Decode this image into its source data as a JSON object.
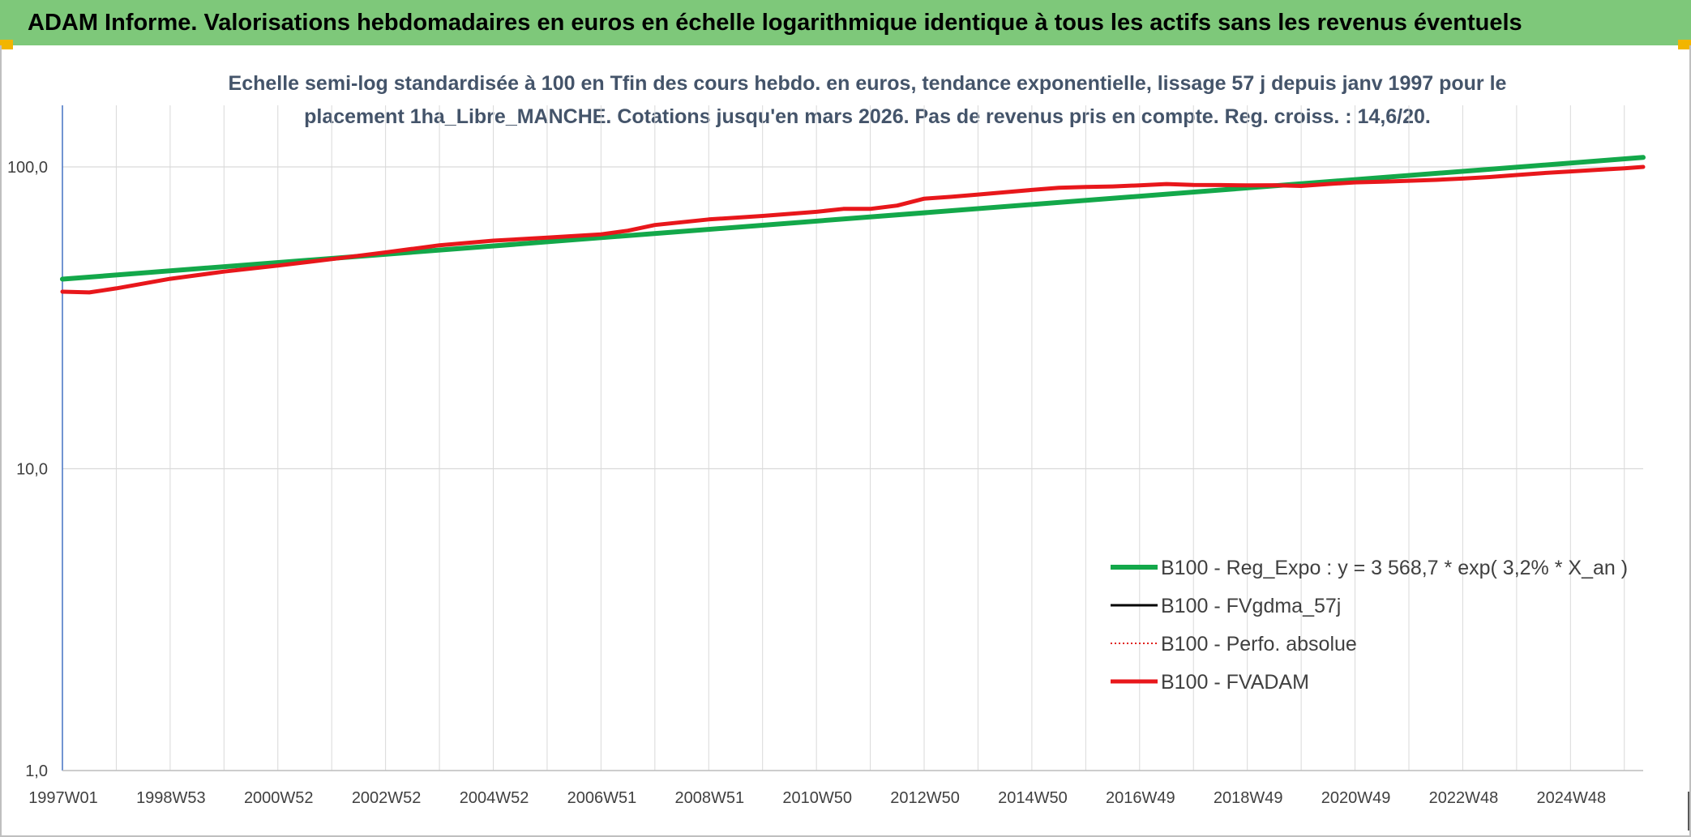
{
  "header": {
    "title": "ADAM Informe. Valorisations hebdomadaires en euros en échelle logarithmique identique à tous les actifs sans les revenus éventuels"
  },
  "colors": {
    "banner": "#7ec87a",
    "corner": "#f2b500",
    "trend": "#13a84a",
    "fvgdma": "#000000",
    "perfo": "#e0201b",
    "fvadam": "#e8171b",
    "grid": "#d9d9d9",
    "axis": "#4472c4"
  },
  "chart_data": {
    "type": "line",
    "title": "Echelle semi-log standardisée à 100 en Tfin des cours hebdo. en euros, tendance exponentielle, lissage 57 j depuis janv 1997 pour le\nplacement 1ha_Libre_MANCHE. Cotations jusqu'en mars 2026. Pas de revenus pris en compte. Reg. croiss. : 14,6/20.",
    "yscale": "log",
    "ylim": [
      1,
      160
    ],
    "yticks": [
      {
        "value": 1,
        "label": "1,0"
      },
      {
        "value": 10,
        "label": "10,0"
      },
      {
        "value": 100,
        "label": "100,0"
      }
    ],
    "xlim": [
      1997.0,
      2026.35
    ],
    "xticks": [
      {
        "value": 1997.0,
        "label": "1997W01"
      },
      {
        "value": 1999.0,
        "label": "1998W53"
      },
      {
        "value": 2001.0,
        "label": "2000W52"
      },
      {
        "value": 2003.0,
        "label": "2002W52"
      },
      {
        "value": 2005.0,
        "label": "2004W52"
      },
      {
        "value": 2007.0,
        "label": "2006W51"
      },
      {
        "value": 2009.0,
        "label": "2008W51"
      },
      {
        "value": 2011.0,
        "label": "2010W50"
      },
      {
        "value": 2013.0,
        "label": "2012W50"
      },
      {
        "value": 2015.0,
        "label": "2014W50"
      },
      {
        "value": 2017.0,
        "label": "2016W49"
      },
      {
        "value": 2019.0,
        "label": "2018W49"
      },
      {
        "value": 2021.0,
        "label": "2020W49"
      },
      {
        "value": 2023.0,
        "label": "2022W48"
      },
      {
        "value": 2025.0,
        "label": "2024W48"
      }
    ],
    "minor_gridlines_x": [
      1998,
      2000,
      2002,
      2004,
      2006,
      2008,
      2010,
      2012,
      2014,
      2016,
      2018,
      2020,
      2022,
      2024,
      2026
    ],
    "grid": true,
    "legend_position": "bottom-right",
    "series": [
      {
        "name": "B100 - Reg_Expo : y = 3 568,7 * exp( 3,2% *  X_an )",
        "color": "#13a84a",
        "style": "solid",
        "width": 6,
        "x": [
          1997.0,
          2026.35
        ],
        "y": [
          42.5,
          107.5
        ]
      },
      {
        "name": "B100 - FVgdma_57j",
        "color": "#000000",
        "style": "solid",
        "width": 3,
        "x": [],
        "y": []
      },
      {
        "name": "B100 - Perfo. absolue",
        "color": "#e0201b",
        "style": "dotted",
        "width": 2,
        "x": [],
        "y": []
      },
      {
        "name": "B100 - FVADAM",
        "color": "#e8171b",
        "style": "solid",
        "width": 5,
        "x": [
          1997.0,
          1997.5,
          1998.0,
          1999.0,
          2000.0,
          2001.0,
          2002.0,
          2003.0,
          2004.0,
          2005.0,
          2006.0,
          2007.0,
          2007.5,
          2008.0,
          2009.0,
          2010.0,
          2011.0,
          2011.5,
          2012.0,
          2012.5,
          2013.0,
          2013.5,
          2014.0,
          2014.5,
          2015.0,
          2015.5,
          2016.0,
          2016.5,
          2017.0,
          2017.5,
          2018.0,
          2018.5,
          2019.0,
          2019.5,
          2020.0,
          2020.5,
          2021.0,
          2021.5,
          2022.0,
          2022.5,
          2023.0,
          2023.5,
          2024.0,
          2024.5,
          2025.0,
          2025.5,
          2026.0,
          2026.35
        ],
        "y": [
          38.6,
          38.4,
          39.6,
          42.6,
          45.0,
          47.1,
          49.5,
          52.1,
          55.0,
          57.0,
          58.3,
          59.8,
          61.5,
          64.2,
          67.0,
          68.8,
          71.0,
          72.6,
          72.6,
          74.5,
          78.5,
          79.6,
          81.0,
          82.5,
          83.9,
          85.3,
          85.8,
          86.2,
          86.9,
          87.8,
          87.2,
          87.1,
          86.9,
          87.0,
          86.5,
          87.8,
          88.9,
          89.4,
          90.0,
          90.6,
          91.5,
          92.6,
          94.0,
          95.4,
          96.6,
          97.8,
          99.0,
          100.0
        ]
      }
    ]
  }
}
